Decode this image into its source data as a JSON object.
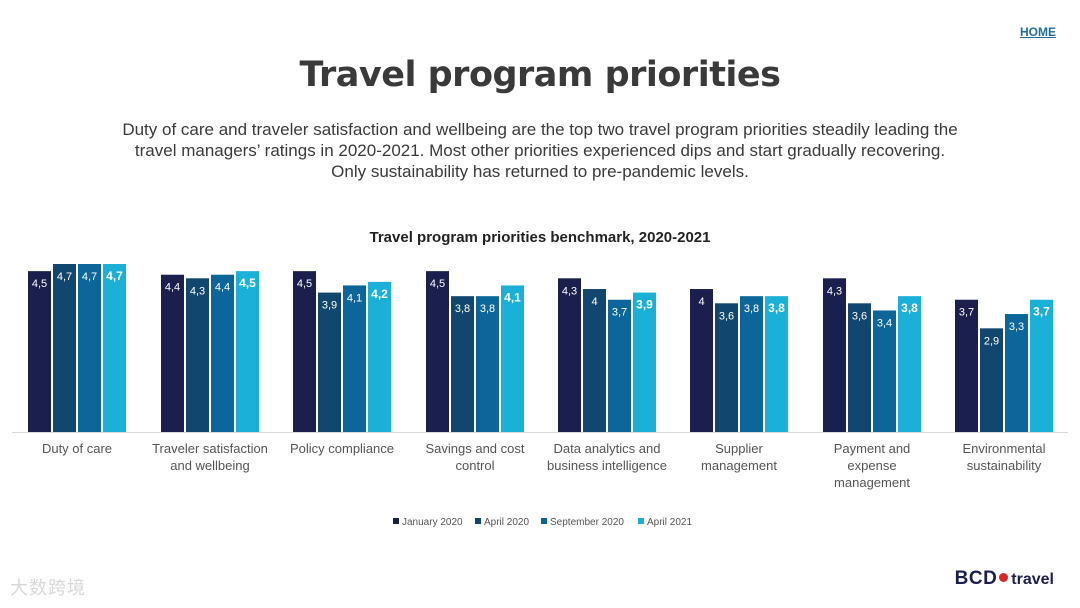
{
  "nav": {
    "home_label": "HOME"
  },
  "page": {
    "title": "Travel program priorities",
    "intro_lines": [
      "Duty of care and traveler satisfaction and wellbeing are the top two travel program priorities steadily leading the",
      "travel managers’ ratings in 2020-2021. Most other priorities experienced dips and start gradually recovering.",
      "Only sustainability has returned to pre-pandemic levels."
    ]
  },
  "colors": {
    "jan2020": "#1a1f4e",
    "apr2020": "#11466e",
    "sep2020": "#0d6699",
    "apr2021": "#1ab0d8"
  },
  "chart_data": {
    "type": "bar",
    "title": "Travel program priorities benchmark, 2020-2021",
    "categories": [
      [
        "Duty of care"
      ],
      [
        "Traveler satisfaction",
        "and wellbeing"
      ],
      [
        "Policy compliance"
      ],
      [
        "Savings and cost",
        "control"
      ],
      [
        "Data analytics and",
        "business intelligence"
      ],
      [
        "Supplier",
        "management"
      ],
      [
        "Payment and",
        "expense",
        "management"
      ],
      [
        "Environmental",
        "sustainability"
      ]
    ],
    "series": [
      {
        "name": "January 2020",
        "color_key": "jan2020",
        "values": [
          4.5,
          4.4,
          4.5,
          4.5,
          4.3,
          4,
          4.3,
          3.7
        ],
        "labels": [
          "4,5",
          "4,4",
          "4,5",
          "4,5",
          "4,3",
          "4",
          "4,3",
          "3,7"
        ]
      },
      {
        "name": "April 2020",
        "color_key": "apr2020",
        "values": [
          4.7,
          4.3,
          3.9,
          3.8,
          4,
          3.6,
          3.6,
          2.9
        ],
        "labels": [
          "4,7",
          "4,3",
          "3,9",
          "3,8",
          "4",
          "3,6",
          "3,6",
          "2,9"
        ]
      },
      {
        "name": "September 2020",
        "color_key": "sep2020",
        "values": [
          4.7,
          4.4,
          4.1,
          3.8,
          3.7,
          3.8,
          3.4,
          3.3
        ],
        "labels": [
          "4,7",
          "4,4",
          "4,1",
          "3,8",
          "3,7",
          "3,8",
          "3,4",
          "3,3"
        ]
      },
      {
        "name": "April 2021",
        "color_key": "apr2021",
        "values": [
          4.7,
          4.5,
          4.2,
          4.1,
          3.9,
          3.8,
          3.8,
          3.7
        ],
        "labels": [
          "4,7",
          "4,5",
          "4,2",
          "4,1",
          "3,9",
          "3,8",
          "3,8",
          "3,7"
        ]
      }
    ],
    "ylim": [
      0,
      4.7
    ],
    "xlabel": "",
    "ylabel": "",
    "grid": false,
    "legend": "bottom-center"
  },
  "branding": {
    "logo_bcd": "BCD",
    "logo_travel": "travel",
    "watermark": "大数跨境"
  }
}
